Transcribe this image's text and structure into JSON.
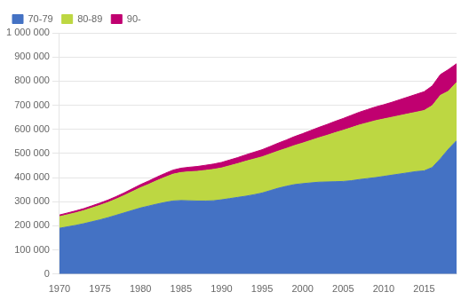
{
  "chart_data": {
    "type": "area",
    "stacked": true,
    "x": [
      1970,
      1971,
      1972,
      1973,
      1974,
      1975,
      1976,
      1977,
      1978,
      1979,
      1980,
      1981,
      1982,
      1983,
      1984,
      1985,
      1986,
      1987,
      1988,
      1989,
      1990,
      1991,
      1992,
      1993,
      1994,
      1995,
      1996,
      1997,
      1998,
      1999,
      2000,
      2001,
      2002,
      2003,
      2004,
      2005,
      2006,
      2007,
      2008,
      2009,
      2010,
      2011,
      2012,
      2013,
      2014,
      2015,
      2016,
      2017,
      2018,
      2019
    ],
    "series": [
      {
        "name": "70-79",
        "color": "#4472c4",
        "values": [
          190000,
          196000,
          202000,
          209000,
          217000,
          225000,
          234000,
          244000,
          254000,
          264000,
          274000,
          282000,
          290000,
          297000,
          303000,
          305000,
          304000,
          303000,
          303000,
          304000,
          308000,
          313000,
          318000,
          323000,
          329000,
          336000,
          346000,
          356000,
          364000,
          371000,
          375000,
          378000,
          381000,
          382000,
          383000,
          384000,
          387000,
          392000,
          396000,
          400000,
          405000,
          410000,
          415000,
          420000,
          425000,
          428000,
          442000,
          478000,
          518000,
          553000
        ]
      },
      {
        "name": "80-89",
        "color": "#bdd742",
        "values": [
          48000,
          50000,
          52000,
          54000,
          57000,
          60000,
          63000,
          67000,
          72000,
          78000,
          84000,
          90000,
          97000,
          104000,
          111000,
          116000,
          120000,
          123000,
          127000,
          130000,
          132000,
          136000,
          140000,
          145000,
          148000,
          150000,
          152000,
          154000,
          157000,
          162000,
          168000,
          176000,
          184000,
          193000,
          203000,
          212000,
          220000,
          226000,
          231000,
          236000,
          238000,
          240000,
          242000,
          244000,
          246000,
          250000,
          256000,
          263000,
          240000,
          242000
        ]
      },
      {
        "name": "90-",
        "color": "#c00070",
        "values": [
          7000,
          7500,
          8000,
          8500,
          9000,
          9500,
          10000,
          10500,
          11000,
          12000,
          13000,
          14000,
          15000,
          16000,
          17000,
          18000,
          19000,
          20000,
          21000,
          22000,
          23000,
          24000,
          25000,
          26500,
          28000,
          29500,
          31000,
          33000,
          35000,
          37000,
          39000,
          41000,
          43000,
          45000,
          47000,
          49000,
          51000,
          53000,
          55000,
          57000,
          59000,
          62000,
          66000,
          70000,
          74000,
          78000,
          82000,
          86000,
          90000,
          77000
        ]
      }
    ],
    "xlim": [
      1970,
      2019
    ],
    "xticks": [
      1970,
      1975,
      1980,
      1985,
      1990,
      1995,
      2000,
      2005,
      2010,
      2015
    ],
    "ylim": [
      0,
      1000000
    ],
    "yticks": [
      0,
      {
        "value": 100000,
        "label": "100 000"
      },
      {
        "value": 200000,
        "label": "200 000"
      },
      {
        "value": 300000,
        "label": "300 000"
      },
      {
        "value": 400000,
        "label": "400 000"
      },
      {
        "value": 500000,
        "label": "500 000"
      },
      {
        "value": 600000,
        "label": "600 000"
      },
      {
        "value": 700000,
        "label": "700 000"
      },
      {
        "value": 800000,
        "label": "800 000"
      },
      {
        "value": 900000,
        "label": "900 000"
      },
      {
        "value": 1000000,
        "label": "1 000 000"
      }
    ],
    "grid": true,
    "legend": "upper left"
  }
}
